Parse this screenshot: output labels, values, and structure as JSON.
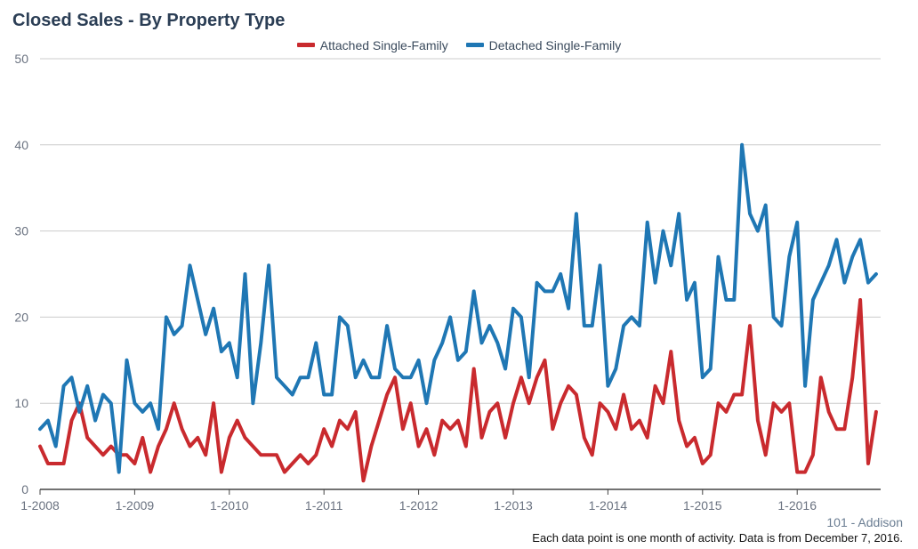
{
  "title": "Closed Sales - By Property Type",
  "legend": {
    "attached_label": "Attached Single-Family",
    "detached_label": "Detached Single-Family"
  },
  "colors": {
    "attached": "#c92a2e",
    "detached": "#1f77b4",
    "grid": "#cccccc",
    "axis": "#444444"
  },
  "footer": {
    "region": "101 - Addison",
    "note": "Each data point is one month of activity. Data is from December 7, 2016."
  },
  "chart_data": {
    "type": "line",
    "title": "Closed Sales - By Property Type",
    "x_start": "1-2008",
    "x_unit": "month",
    "x_tick_labels": [
      "1-2008",
      "1-2009",
      "1-2010",
      "1-2011",
      "1-2012",
      "1-2013",
      "1-2014",
      "1-2015",
      "1-2016"
    ],
    "y_ticks": [
      0,
      10,
      20,
      30,
      40,
      50
    ],
    "ylim": [
      0,
      50
    ],
    "grid": true,
    "legend_position": "top-center",
    "series": [
      {
        "name": "Attached Single-Family",
        "values": [
          5,
          3,
          3,
          3,
          8,
          10,
          6,
          5,
          4,
          5,
          4,
          4,
          3,
          6,
          2,
          5,
          7,
          10,
          7,
          5,
          6,
          4,
          10,
          2,
          6,
          8,
          6,
          5,
          4,
          4,
          4,
          2,
          3,
          4,
          3,
          4,
          7,
          5,
          8,
          7,
          9,
          1,
          5,
          8,
          11,
          13,
          7,
          10,
          5,
          7,
          4,
          8,
          7,
          8,
          5,
          14,
          6,
          9,
          10,
          6,
          10,
          13,
          10,
          13,
          15,
          7,
          10,
          12,
          11,
          6,
          4,
          10,
          9,
          7,
          11,
          7,
          8,
          6,
          12,
          10,
          16,
          8,
          5,
          6,
          3,
          4,
          10,
          9,
          11,
          11,
          19,
          8,
          4,
          10,
          9,
          10,
          2,
          2,
          4,
          13,
          9,
          7,
          7,
          13,
          22,
          3,
          9
        ]
      },
      {
        "name": "Detached Single-Family",
        "values": [
          7,
          8,
          5,
          12,
          13,
          9,
          12,
          8,
          11,
          10,
          2,
          15,
          10,
          9,
          10,
          7,
          20,
          18,
          19,
          26,
          22,
          18,
          21,
          16,
          17,
          13,
          25,
          10,
          17,
          26,
          13,
          12,
          11,
          13,
          13,
          17,
          11,
          11,
          20,
          19,
          13,
          15,
          13,
          13,
          19,
          14,
          13,
          13,
          15,
          10,
          15,
          17,
          20,
          15,
          16,
          23,
          17,
          19,
          17,
          14,
          21,
          20,
          13,
          24,
          23,
          23,
          25,
          21,
          32,
          19,
          19,
          26,
          12,
          14,
          19,
          20,
          19,
          31,
          24,
          30,
          26,
          32,
          22,
          24,
          13,
          14,
          27,
          22,
          22,
          40,
          32,
          30,
          33,
          20,
          19,
          27,
          31,
          12,
          22,
          24,
          26,
          29,
          24,
          27,
          29,
          24,
          25
        ]
      }
    ]
  }
}
